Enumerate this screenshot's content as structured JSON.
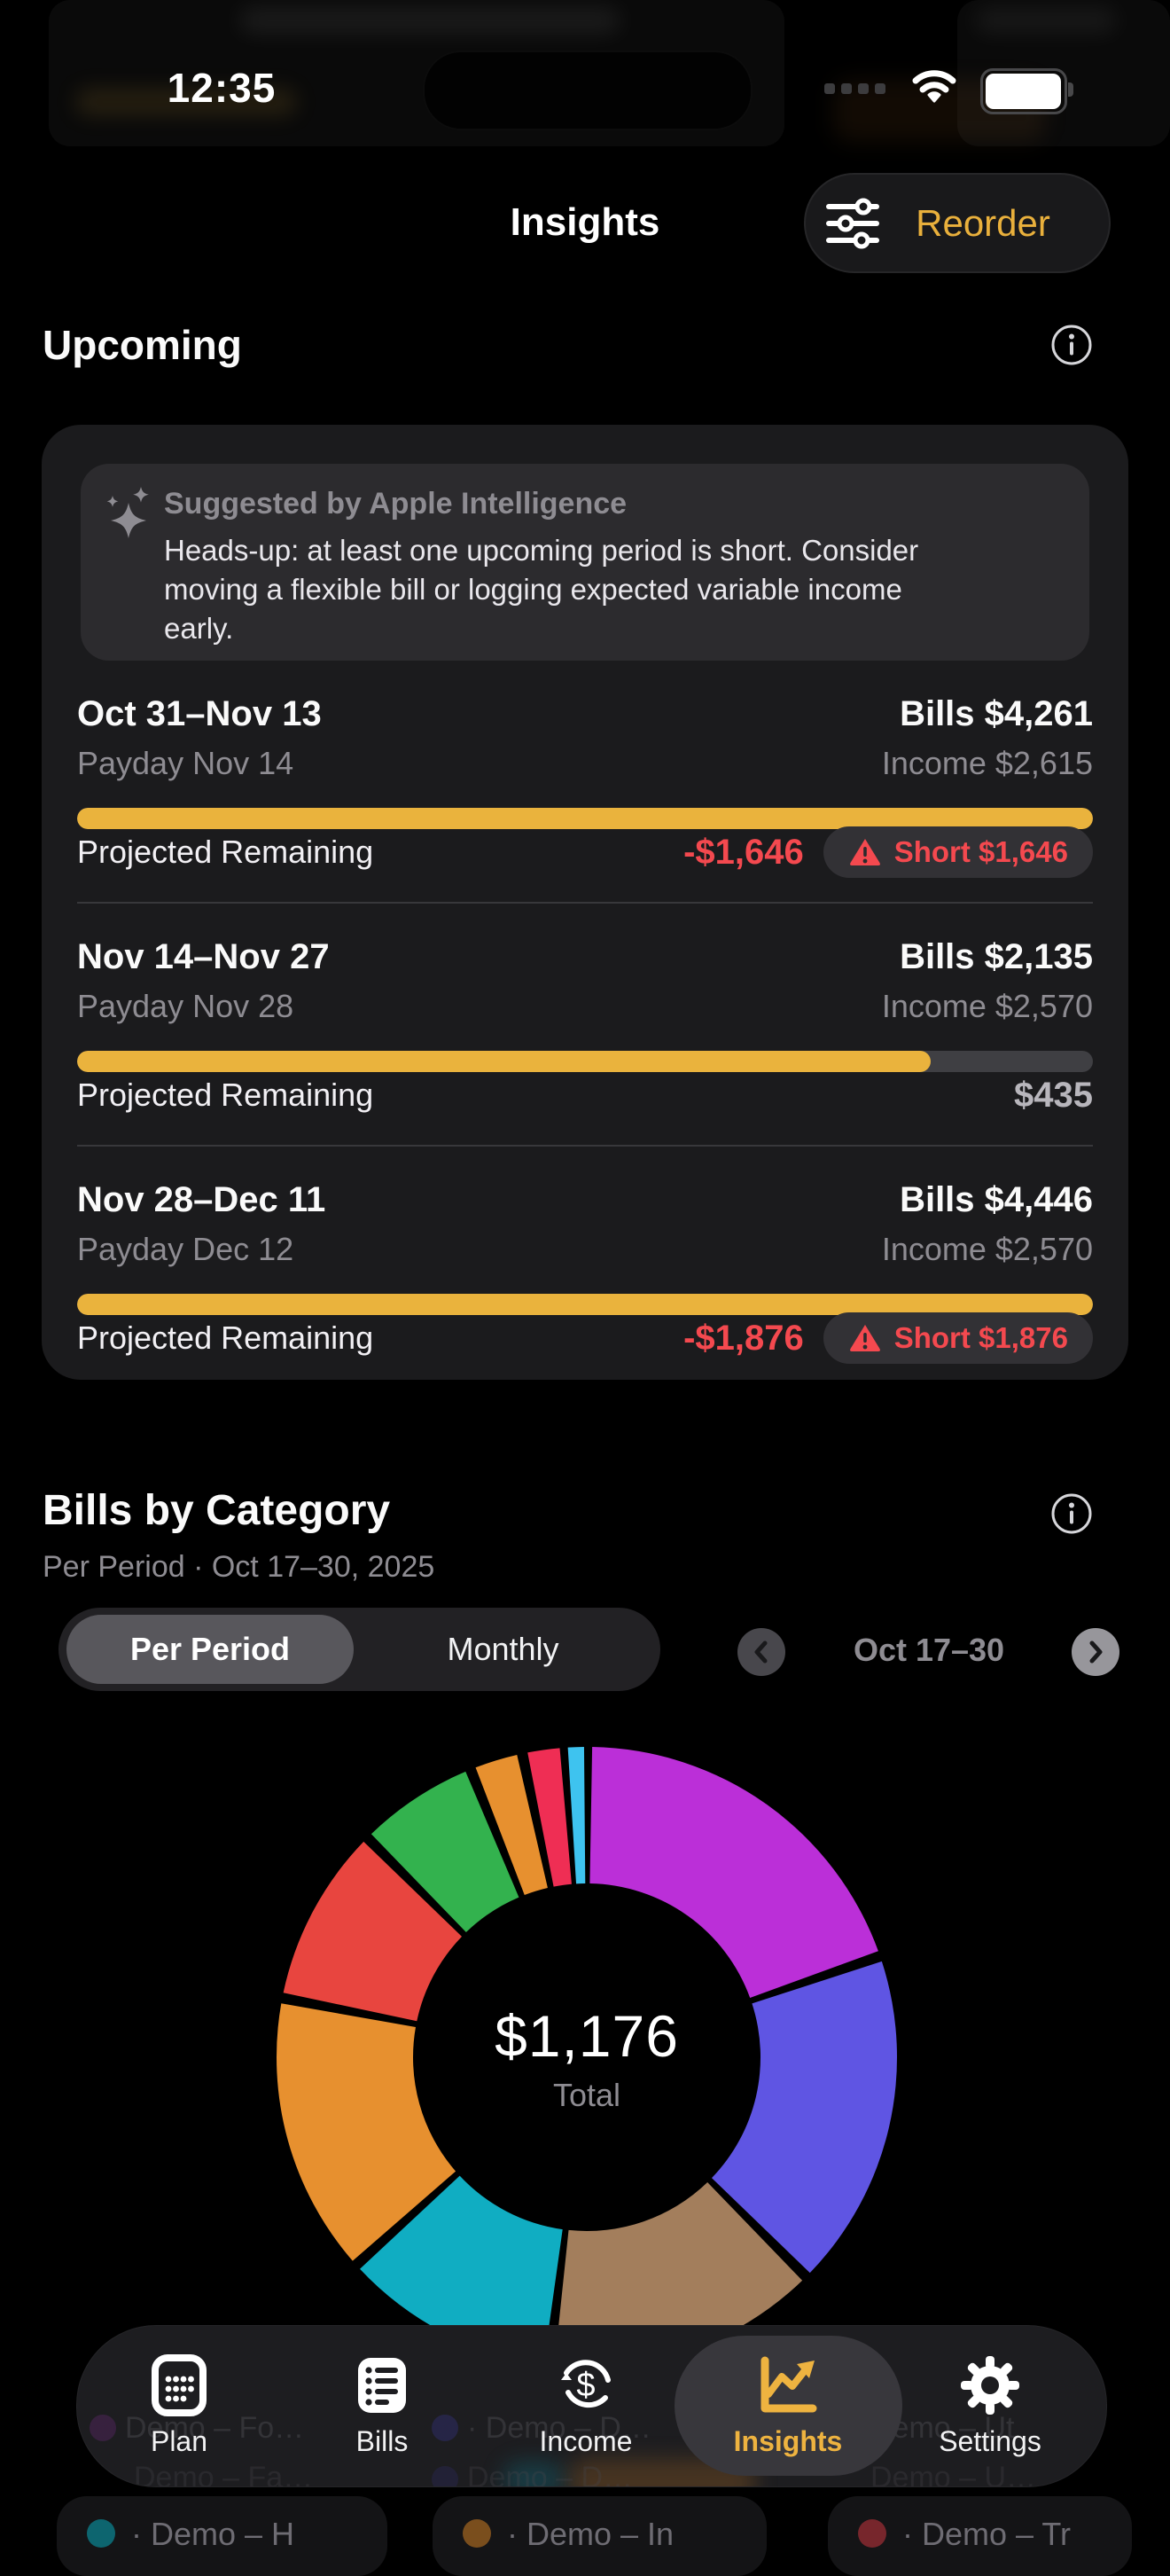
{
  "status_bar": {
    "time": "12:35"
  },
  "header": {
    "title": "Insights",
    "reorder_label": "Reorder"
  },
  "colors": {
    "accent_yellow": "#eab33d",
    "alert_red": "#f4494f",
    "card_bg": "#1b1b1d",
    "suggestion_bg": "#2c2b2e"
  },
  "upcoming": {
    "heading": "Upcoming",
    "suggestion": {
      "title": "Suggested by Apple Intelligence",
      "body": "Heads-up: at least one upcoming period is short. Consider moving a flexible bill or logging expected variable income early."
    },
    "periods": [
      {
        "range": "Oct 31–Nov 13",
        "payday": "Payday Nov 14",
        "bills": "Bills $4,261",
        "income": "Income $2,615",
        "remaining_label": "Projected Remaining",
        "remaining": "-$1,646",
        "short_badge": "Short $1,646",
        "progress": 1
      },
      {
        "range": "Nov 14–Nov 27",
        "payday": "Payday Nov 28",
        "bills": "Bills $2,135",
        "income": "Income $2,570",
        "remaining_label": "Projected Remaining",
        "remaining": "$435",
        "short_badge": null,
        "progress": 0.84
      },
      {
        "range": "Nov 28–Dec 11",
        "payday": "Payday Dec 12",
        "bills": "Bills $4,446",
        "income": "Income $2,570",
        "remaining_label": "Projected Remaining",
        "remaining": "-$1,876",
        "short_badge": "Short $1,876",
        "progress": 1
      }
    ]
  },
  "bills_by_category": {
    "heading": "Bills by Category",
    "subtitle": "Per Period · Oct 17–30, 2025",
    "segmented": {
      "options": [
        "Per Period",
        "Monthly"
      ],
      "selected": 0
    },
    "period_nav_label": "Oct 17–30"
  },
  "chart_data": {
    "type": "donut",
    "title": "Bills by Category",
    "center_total": "$1,176",
    "center_label": "Total",
    "total_value": 1176,
    "legend_position": "bottom (partially hidden behind tab bar)",
    "segments": [
      {
        "color": "#bb2fd8",
        "start_deg": 1,
        "end_deg": 70,
        "value": 241
      },
      {
        "color": "#5f55e3",
        "start_deg": 72,
        "end_deg": 134,
        "value": 213
      },
      {
        "color": "#a37e5c",
        "start_deg": 136,
        "end_deg": 186,
        "value": 172
      },
      {
        "color": "#10adc2",
        "start_deg": 188,
        "end_deg": 227,
        "value": 134
      },
      {
        "color": "#e7902f",
        "start_deg": 229,
        "end_deg": 280,
        "value": 175
      },
      {
        "color": "#e8453f",
        "start_deg": 282,
        "end_deg": 314,
        "value": 110
      },
      {
        "color": "#33b24e",
        "start_deg": 316,
        "end_deg": 337,
        "value": 72
      },
      {
        "color": "#e7902f",
        "start_deg": 339,
        "end_deg": 347,
        "value": 28
      },
      {
        "color": "#ef2e54",
        "start_deg": 349,
        "end_deg": 355,
        "value": 21
      },
      {
        "color": "#3ec3ef",
        "start_deg": 356.5,
        "end_deg": 359.5,
        "value": 10
      }
    ]
  },
  "tab_bar": {
    "items": [
      {
        "label": "Plan",
        "icon": "calculator-icon",
        "active": false
      },
      {
        "label": "Bills",
        "icon": "list-icon",
        "active": false
      },
      {
        "label": "Income",
        "icon": "money-cycle-icon",
        "active": false
      },
      {
        "label": "Insights",
        "icon": "chart-line-icon",
        "active": true
      },
      {
        "label": "Settings",
        "icon": "gear-icon",
        "active": false
      }
    ]
  },
  "partial_legend": {
    "behind_bar_row1": [
      "Demo – Fo…",
      "· Demo – D…",
      "Demo – Ut"
    ],
    "behind_bar_row2": [
      "Demo – Fa…",
      "Demo – D…",
      "Demo – U…"
    ],
    "chips": [
      {
        "dot_color": "#0d656f",
        "label": "· Demo – H"
      },
      {
        "dot_color": "#7a4e1d",
        "label": "· Demo – In"
      },
      {
        "dot_color": "#77262c",
        "label": "· Demo – Tr"
      }
    ]
  }
}
